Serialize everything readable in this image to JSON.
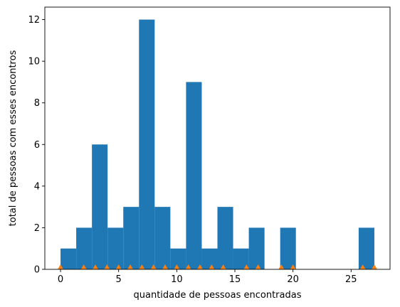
{
  "chart_data": {
    "type": "bar",
    "subtype": "histogram",
    "xlabel": "quantidade de pessoas encontradas",
    "ylabel": "total de pessoas com esses encontros",
    "xlim": [
      -1.35,
      28.35
    ],
    "ylim": [
      0,
      12.6
    ],
    "xticks": [
      0,
      5,
      10,
      15,
      20,
      25
    ],
    "yticks": [
      0,
      2,
      4,
      6,
      8,
      10,
      12
    ],
    "grid": false,
    "bar_color": "#1f77b4",
    "marker_color": "#ff7f0e",
    "bins": [
      {
        "x0": 0,
        "x1": 1.35,
        "value": 1
      },
      {
        "x0": 1.35,
        "x1": 2.7,
        "value": 2
      },
      {
        "x0": 2.7,
        "x1": 4.05,
        "value": 6
      },
      {
        "x0": 4.05,
        "x1": 5.4,
        "value": 2
      },
      {
        "x0": 5.4,
        "x1": 6.75,
        "value": 3
      },
      {
        "x0": 6.75,
        "x1": 8.1,
        "value": 12
      },
      {
        "x0": 8.1,
        "x1": 9.45,
        "value": 3
      },
      {
        "x0": 9.45,
        "x1": 10.8,
        "value": 1
      },
      {
        "x0": 10.8,
        "x1": 12.15,
        "value": 9
      },
      {
        "x0": 12.15,
        "x1": 13.5,
        "value": 1
      },
      {
        "x0": 13.5,
        "x1": 14.85,
        "value": 3
      },
      {
        "x0": 14.85,
        "x1": 16.2,
        "value": 1
      },
      {
        "x0": 16.2,
        "x1": 17.55,
        "value": 2
      },
      {
        "x0": 18.9,
        "x1": 20.25,
        "value": 2
      },
      {
        "x0": 25.65,
        "x1": 27,
        "value": 2
      }
    ],
    "markers": [
      0,
      2,
      3,
      4,
      5,
      6,
      7,
      8,
      9,
      10,
      11,
      12,
      13,
      14,
      16,
      17,
      19,
      20,
      26,
      27
    ]
  }
}
